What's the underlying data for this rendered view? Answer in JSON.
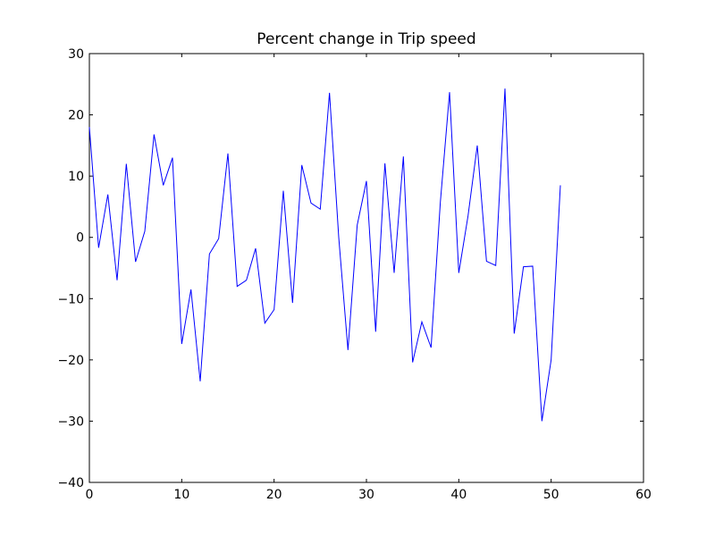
{
  "chart_data": {
    "type": "line",
    "title": "Percent change in Trip speed",
    "xlabel": "",
    "ylabel": "",
    "xlim": [
      0,
      60
    ],
    "ylim": [
      -40,
      30
    ],
    "xticks": [
      0,
      10,
      20,
      30,
      40,
      50,
      60
    ],
    "yticks": [
      -40,
      -30,
      -20,
      -10,
      0,
      10,
      20,
      30
    ],
    "grid": false,
    "series": [
      {
        "color": "#0000ff",
        "x": [
          0,
          1,
          2,
          3,
          4,
          5,
          6,
          7,
          8,
          9,
          10,
          11,
          12,
          13,
          14,
          15,
          16,
          17,
          18,
          19,
          20,
          21,
          22,
          23,
          24,
          25,
          26,
          27,
          28,
          29,
          30,
          31,
          32,
          33,
          34,
          35,
          36,
          37,
          38,
          39,
          40,
          41,
          42,
          43,
          44,
          45,
          46,
          47,
          48,
          49,
          50,
          51
        ],
        "y": [
          18,
          -1.7,
          7,
          -7,
          12,
          -4,
          1,
          16.8,
          8.5,
          13,
          -17.4,
          -8.5,
          -23.5,
          -2.7,
          -0.2,
          13.7,
          -8,
          -7,
          -1.8,
          -14,
          -11.8,
          7.6,
          -10.7,
          11.8,
          5.6,
          4.6,
          23.6,
          0,
          -18.4,
          2,
          9.2,
          -15.4,
          12.1,
          -5.8,
          13.2,
          -20.4,
          -13.8,
          -18,
          5.7,
          23.7,
          -5.8,
          3.5,
          15,
          -3.9,
          -4.6,
          24.3,
          -15.7,
          -4.8,
          -4.7,
          -30,
          -20,
          8.5
        ]
      }
    ]
  }
}
